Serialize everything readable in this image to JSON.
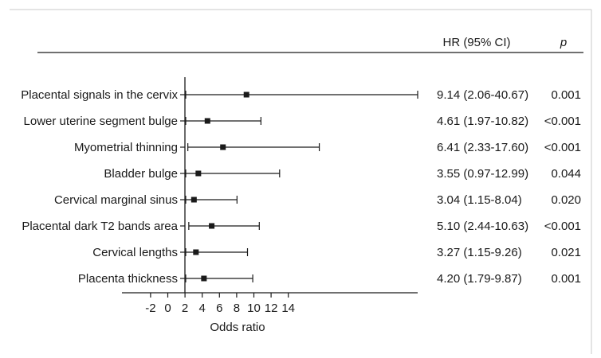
{
  "chart_data": {
    "type": "forest",
    "header": {
      "hr_label": "HR (95% CI)",
      "p_label": "p"
    },
    "xlabel": "Odds ratio",
    "xlim": [
      -3,
      15
    ],
    "xticks": [
      -2,
      0,
      2,
      4,
      6,
      8,
      10,
      12,
      14
    ],
    "xtick_labels": [
      "-2",
      "0",
      "2",
      "4",
      "6",
      "8",
      "10",
      "12",
      "14"
    ],
    "rows": [
      {
        "label": "Placental signals in the cervix",
        "hr": 9.14,
        "lower": 2.06,
        "upper": 40.67,
        "hr_text": "9.14 (2.06-40.67)",
        "p": "0.001"
      },
      {
        "label": "Lower uterine segment bulge",
        "hr": 4.61,
        "lower": 1.97,
        "upper": 10.82,
        "hr_text": "4.61 (1.97-10.82)",
        "p": "<0.001"
      },
      {
        "label": "Myometrial thinning",
        "hr": 6.41,
        "lower": 2.33,
        "upper": 17.6,
        "hr_text": "6.41 (2.33-17.60)",
        "p": "<0.001"
      },
      {
        "label": "Bladder bulge",
        "hr": 3.55,
        "lower": 0.97,
        "upper": 12.99,
        "hr_text": "3.55 (0.97-12.99)",
        "p": "0.044"
      },
      {
        "label": "Cervical marginal sinus",
        "hr": 3.04,
        "lower": 1.15,
        "upper": 8.04,
        "hr_text": "3.04 (1.15-8.04)",
        "p": "0.020"
      },
      {
        "label": "Placental dark T2 bands area",
        "hr": 5.1,
        "lower": 2.44,
        "upper": 10.63,
        "hr_text": "5.10 (2.44-10.63)",
        "p": "<0.001"
      },
      {
        "label": "Cervical lengths",
        "hr": 3.27,
        "lower": 1.15,
        "upper": 9.26,
        "hr_text": "3.27 (1.15-9.26)",
        "p": "0.021"
      },
      {
        "label": "Placenta thickness",
        "hr": 4.2,
        "lower": 1.79,
        "upper": 9.87,
        "hr_text": "4.20 (1.79-9.87)",
        "p": "0.001"
      }
    ]
  },
  "colors": {
    "ink": "#1a1a1a",
    "frame": "#c8c8c8"
  }
}
